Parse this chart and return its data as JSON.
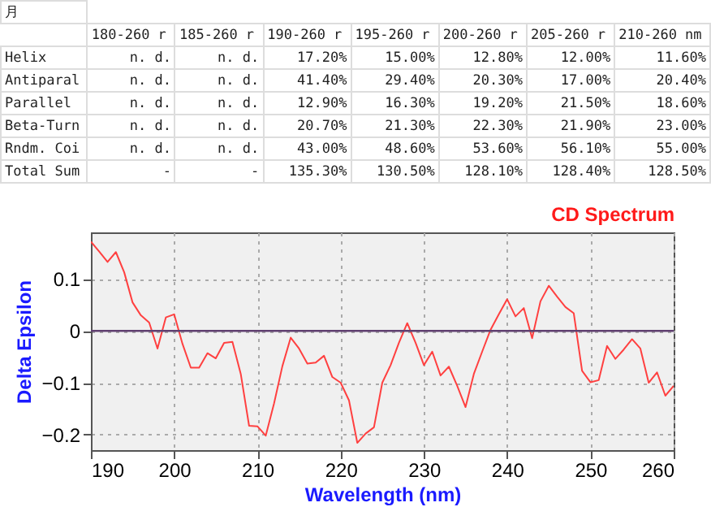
{
  "chart_data": [
    {
      "type": "other",
      "annotations": [
        "月",
        "180-260 r",
        "185-260 r",
        "190-260 r",
        "195-260 r",
        "200-260 r",
        "205-260 r",
        "210-260 nm",
        "Helix",
        "n. d.",
        "n. d.",
        "17.20%",
        "15.00%",
        "12.80%",
        "12.00%",
        "11.60%",
        "Antiparal",
        "n. d.",
        "n. d.",
        "41.40%",
        "29.40%",
        "20.30%",
        "17.00%",
        "20.40%",
        "Parallel",
        "n. d.",
        "n. d.",
        "12.90%",
        "16.30%",
        "19.20%",
        "21.50%",
        "18.60%",
        "Beta-Turn",
        "n. d.",
        "n. d.",
        "20.70%",
        "21.30%",
        "22.30%",
        "21.90%",
        "23.00%",
        "Rndm. Coi",
        "n. d.",
        "n. d.",
        "43.00%",
        "48.60%",
        "53.60%",
        "56.10%",
        "55.00%",
        "Total Sum",
        "-",
        "-",
        "135.30%",
        "130.50%",
        "128.10%",
        "128.40%",
        "128.50%"
      ]
    },
    {
      "type": "line",
      "title": "CD Spectrum",
      "xlabel": "Wavelength (nm)",
      "ylabel": "Delta Epsilon",
      "x": [
        190,
        191,
        192,
        193,
        194,
        195,
        196,
        197,
        198,
        199,
        200,
        201,
        202,
        203,
        204,
        205,
        206,
        207,
        208,
        209,
        210,
        211,
        212,
        213,
        214,
        215,
        216,
        217,
        218,
        219,
        220,
        221,
        222,
        223,
        224,
        225,
        226,
        227,
        228,
        229,
        230,
        231,
        232,
        233,
        234,
        235,
        236,
        237,
        238,
        239,
        240,
        241,
        242,
        243,
        244,
        245,
        246,
        247,
        248,
        249,
        250,
        251,
        252,
        253,
        254,
        255,
        256,
        257,
        258,
        259,
        260
      ],
      "values": [
        0.172,
        0.153,
        0.133,
        0.152,
        0.113,
        0.055,
        0.03,
        0.016,
        -0.034,
        0.026,
        0.032,
        -0.025,
        -0.071,
        -0.071,
        -0.043,
        -0.053,
        -0.023,
        -0.021,
        -0.083,
        -0.183,
        -0.184,
        -0.202,
        -0.14,
        -0.068,
        -0.013,
        -0.034,
        -0.063,
        -0.061,
        -0.048,
        -0.089,
        -0.1,
        -0.134,
        -0.216,
        -0.198,
        -0.186,
        -0.1,
        -0.066,
        -0.023,
        0.015,
        -0.023,
        -0.066,
        -0.04,
        -0.086,
        -0.069,
        -0.106,
        -0.147,
        -0.083,
        -0.04,
        0.002,
        0.032,
        0.061,
        0.028,
        0.044,
        -0.014,
        0.057,
        0.087,
        0.066,
        0.046,
        0.034,
        -0.077,
        -0.099,
        -0.095,
        -0.029,
        -0.054,
        -0.036,
        -0.016,
        -0.034,
        -0.1,
        -0.08,
        -0.125,
        -0.106
      ],
      "color": "#ff4040",
      "xlim": [
        190,
        260
      ],
      "ylim": [
        -0.23,
        0.19
      ],
      "xticks": [
        190,
        200,
        210,
        220,
        230,
        240,
        250,
        260
      ],
      "yticks": [
        -0.2,
        -0.1,
        0,
        0.1
      ],
      "grid": true,
      "ref_lines": [
        {
          "axis": "y",
          "value": 0,
          "color": "#604070"
        }
      ]
    }
  ]
}
